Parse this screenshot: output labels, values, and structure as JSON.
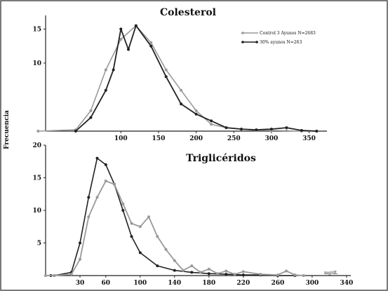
{
  "chart_data": [
    {
      "type": "line",
      "title": "Colesterol",
      "ylabel": "Frecuencia",
      "xlabel": "",
      "x_ticks": [
        "100",
        "150",
        "200",
        "250",
        "300",
        "350"
      ],
      "y_ticks": [
        "15",
        "10"
      ],
      "xlim": [
        0,
        370
      ],
      "ylim": [
        0,
        17
      ],
      "grid": false,
      "legend_position": "top-right",
      "legend": [
        "Control 3 Ayunos N=2683",
        "30% ayunos N=263"
      ],
      "series": [
        {
          "name": "Control 3 Ayunos N=2683",
          "color": "#9a9a9a",
          "x": [
            -10,
            40,
            60,
            80,
            100,
            120,
            140,
            160,
            180,
            200,
            220,
            240,
            260,
            280,
            300,
            320,
            340,
            360
          ],
          "y": [
            0,
            0.2,
            3,
            9,
            13.5,
            15.5,
            13,
            9,
            6,
            3,
            1,
            0.5,
            0.3,
            0.1,
            0.1,
            0.05,
            0,
            0
          ]
        },
        {
          "name": "30% ayunos N=263",
          "color": "#222222",
          "x": [
            40,
            60,
            80,
            90,
            100,
            110,
            120,
            140,
            160,
            180,
            200,
            220,
            240,
            260,
            280,
            300,
            320,
            340,
            360
          ],
          "y": [
            0,
            2,
            6,
            9,
            15,
            12,
            15.5,
            12.5,
            8,
            4,
            2.5,
            1.5,
            0.5,
            0.3,
            0.2,
            0.3,
            0.5,
            0.1,
            0
          ]
        }
      ]
    },
    {
      "type": "line",
      "title": "Triglicéridos",
      "ylabel": "Frecuencia",
      "xlabel": "mg/dL",
      "x_ticks": [
        "30",
        "60",
        "100",
        "140",
        "180",
        "220",
        "260",
        "300",
        "340"
      ],
      "y_ticks": [
        "20",
        "15",
        "10",
        "5"
      ],
      "xlim": [
        -10,
        345
      ],
      "ylim": [
        0,
        20
      ],
      "grid": false,
      "series": [
        {
          "name": "",
          "color": "#222222",
          "x": [
            -4,
            0,
            20,
            30,
            40,
            50,
            60,
            70,
            80,
            90,
            100,
            120,
            140,
            160,
            180,
            200,
            220,
            240,
            260,
            280
          ],
          "y": [
            0,
            0,
            0.5,
            5,
            12,
            18,
            17,
            14,
            10,
            6,
            3.5,
            1.5,
            0.8,
            0.5,
            0.3,
            0.2,
            0.1,
            0.1,
            0,
            0
          ]
        },
        {
          "name": "",
          "color": "#999999",
          "x": [
            -10,
            0,
            20,
            30,
            40,
            50,
            60,
            70,
            80,
            90,
            100,
            110,
            120,
            130,
            140,
            150,
            160,
            170,
            180,
            190,
            200,
            210,
            220,
            240,
            260,
            270,
            280,
            290
          ],
          "y": [
            0,
            0,
            0.2,
            2.5,
            9,
            12,
            14.5,
            14,
            11,
            8,
            7.5,
            9,
            6,
            4,
            2.3,
            0.8,
            1.5,
            0.5,
            1,
            0.3,
            0.7,
            0.2,
            0.6,
            0.2,
            0.1,
            0.7,
            0.1,
            0
          ],
          "y_step_note": ""
        }
      ]
    }
  ]
}
